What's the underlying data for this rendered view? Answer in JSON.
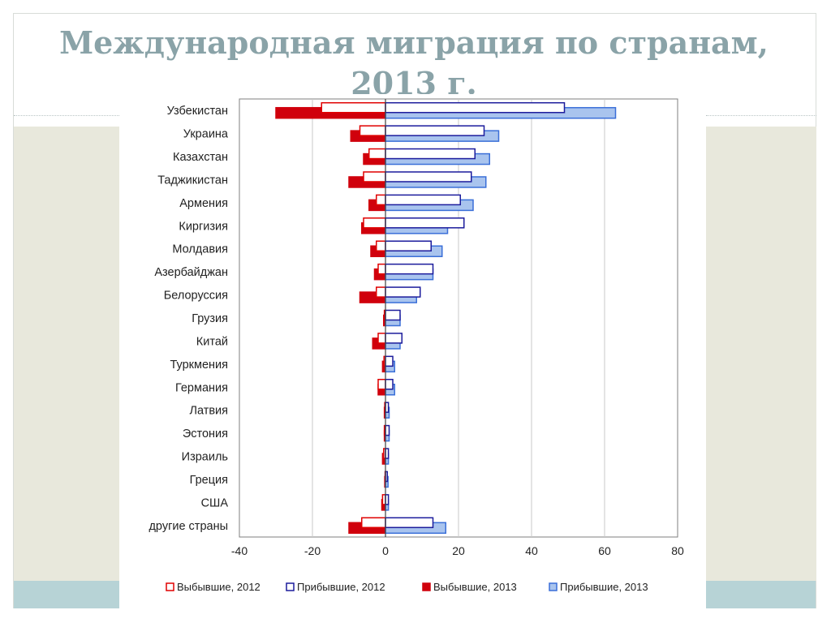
{
  "slide": {
    "title_line1": "Международная миграция по странам,",
    "title_line2": "2013 г."
  },
  "colors": {
    "out_2012": "#e00000",
    "out_2013": "#d0000c",
    "in_2012": "#1c1c9c",
    "in_2013": "#3a6fd8",
    "in_2013_fill": "#a9c4ee"
  },
  "chart_data": {
    "type": "bar",
    "orientation": "horizontal",
    "categories": [
      "Узбекистан",
      "Украина",
      "Казахстан",
      "Таджикистан",
      "Армения",
      "Киргизия",
      "Молдавия",
      "Азербайджан",
      "Белоруссия",
      "Грузия",
      "Китай",
      "Туркмения",
      "Германия",
      "Латвия",
      "Эстония",
      "Израиль",
      "Греция",
      "США",
      "другие страны"
    ],
    "series": [
      {
        "name": "Выбывшие, 2012",
        "values": [
          -17.5,
          -7,
          -4.5,
          -6,
          -2.5,
          -6,
          -2.5,
          -2,
          -2.5,
          -0.3,
          -2,
          -0.4,
          -2,
          -0.2,
          -0.3,
          -0.5,
          -0.1,
          -0.8,
          -6.5
        ]
      },
      {
        "name": "Прибывшие, 2012",
        "values": [
          49,
          27,
          24.5,
          23.5,
          20.5,
          21.5,
          12.5,
          13,
          9.5,
          4,
          4.5,
          2,
          2,
          0.8,
          1,
          0.8,
          0.5,
          0.8,
          13
        ]
      },
      {
        "name": "Выбывшие, 2013",
        "values": [
          -30,
          -9.5,
          -6,
          -10,
          -4.5,
          -6.5,
          -4,
          -3,
          -7,
          -0.5,
          -3.5,
          -0.8,
          -2,
          -0.3,
          -0.3,
          -0.8,
          -0.2,
          -1,
          -10
        ]
      },
      {
        "name": "Прибывшие, 2013",
        "values": [
          63,
          31,
          28.5,
          27.5,
          24,
          17,
          15.5,
          13,
          8.5,
          4,
          4,
          2.5,
          2.5,
          1,
          1,
          0.8,
          0.7,
          0.8,
          16.5
        ]
      }
    ],
    "xlim": [
      -40,
      80
    ],
    "xticks": [
      "-40",
      "-20",
      "0",
      "20",
      "40",
      "60",
      "80"
    ],
    "grid": true,
    "legend": "bottom"
  }
}
